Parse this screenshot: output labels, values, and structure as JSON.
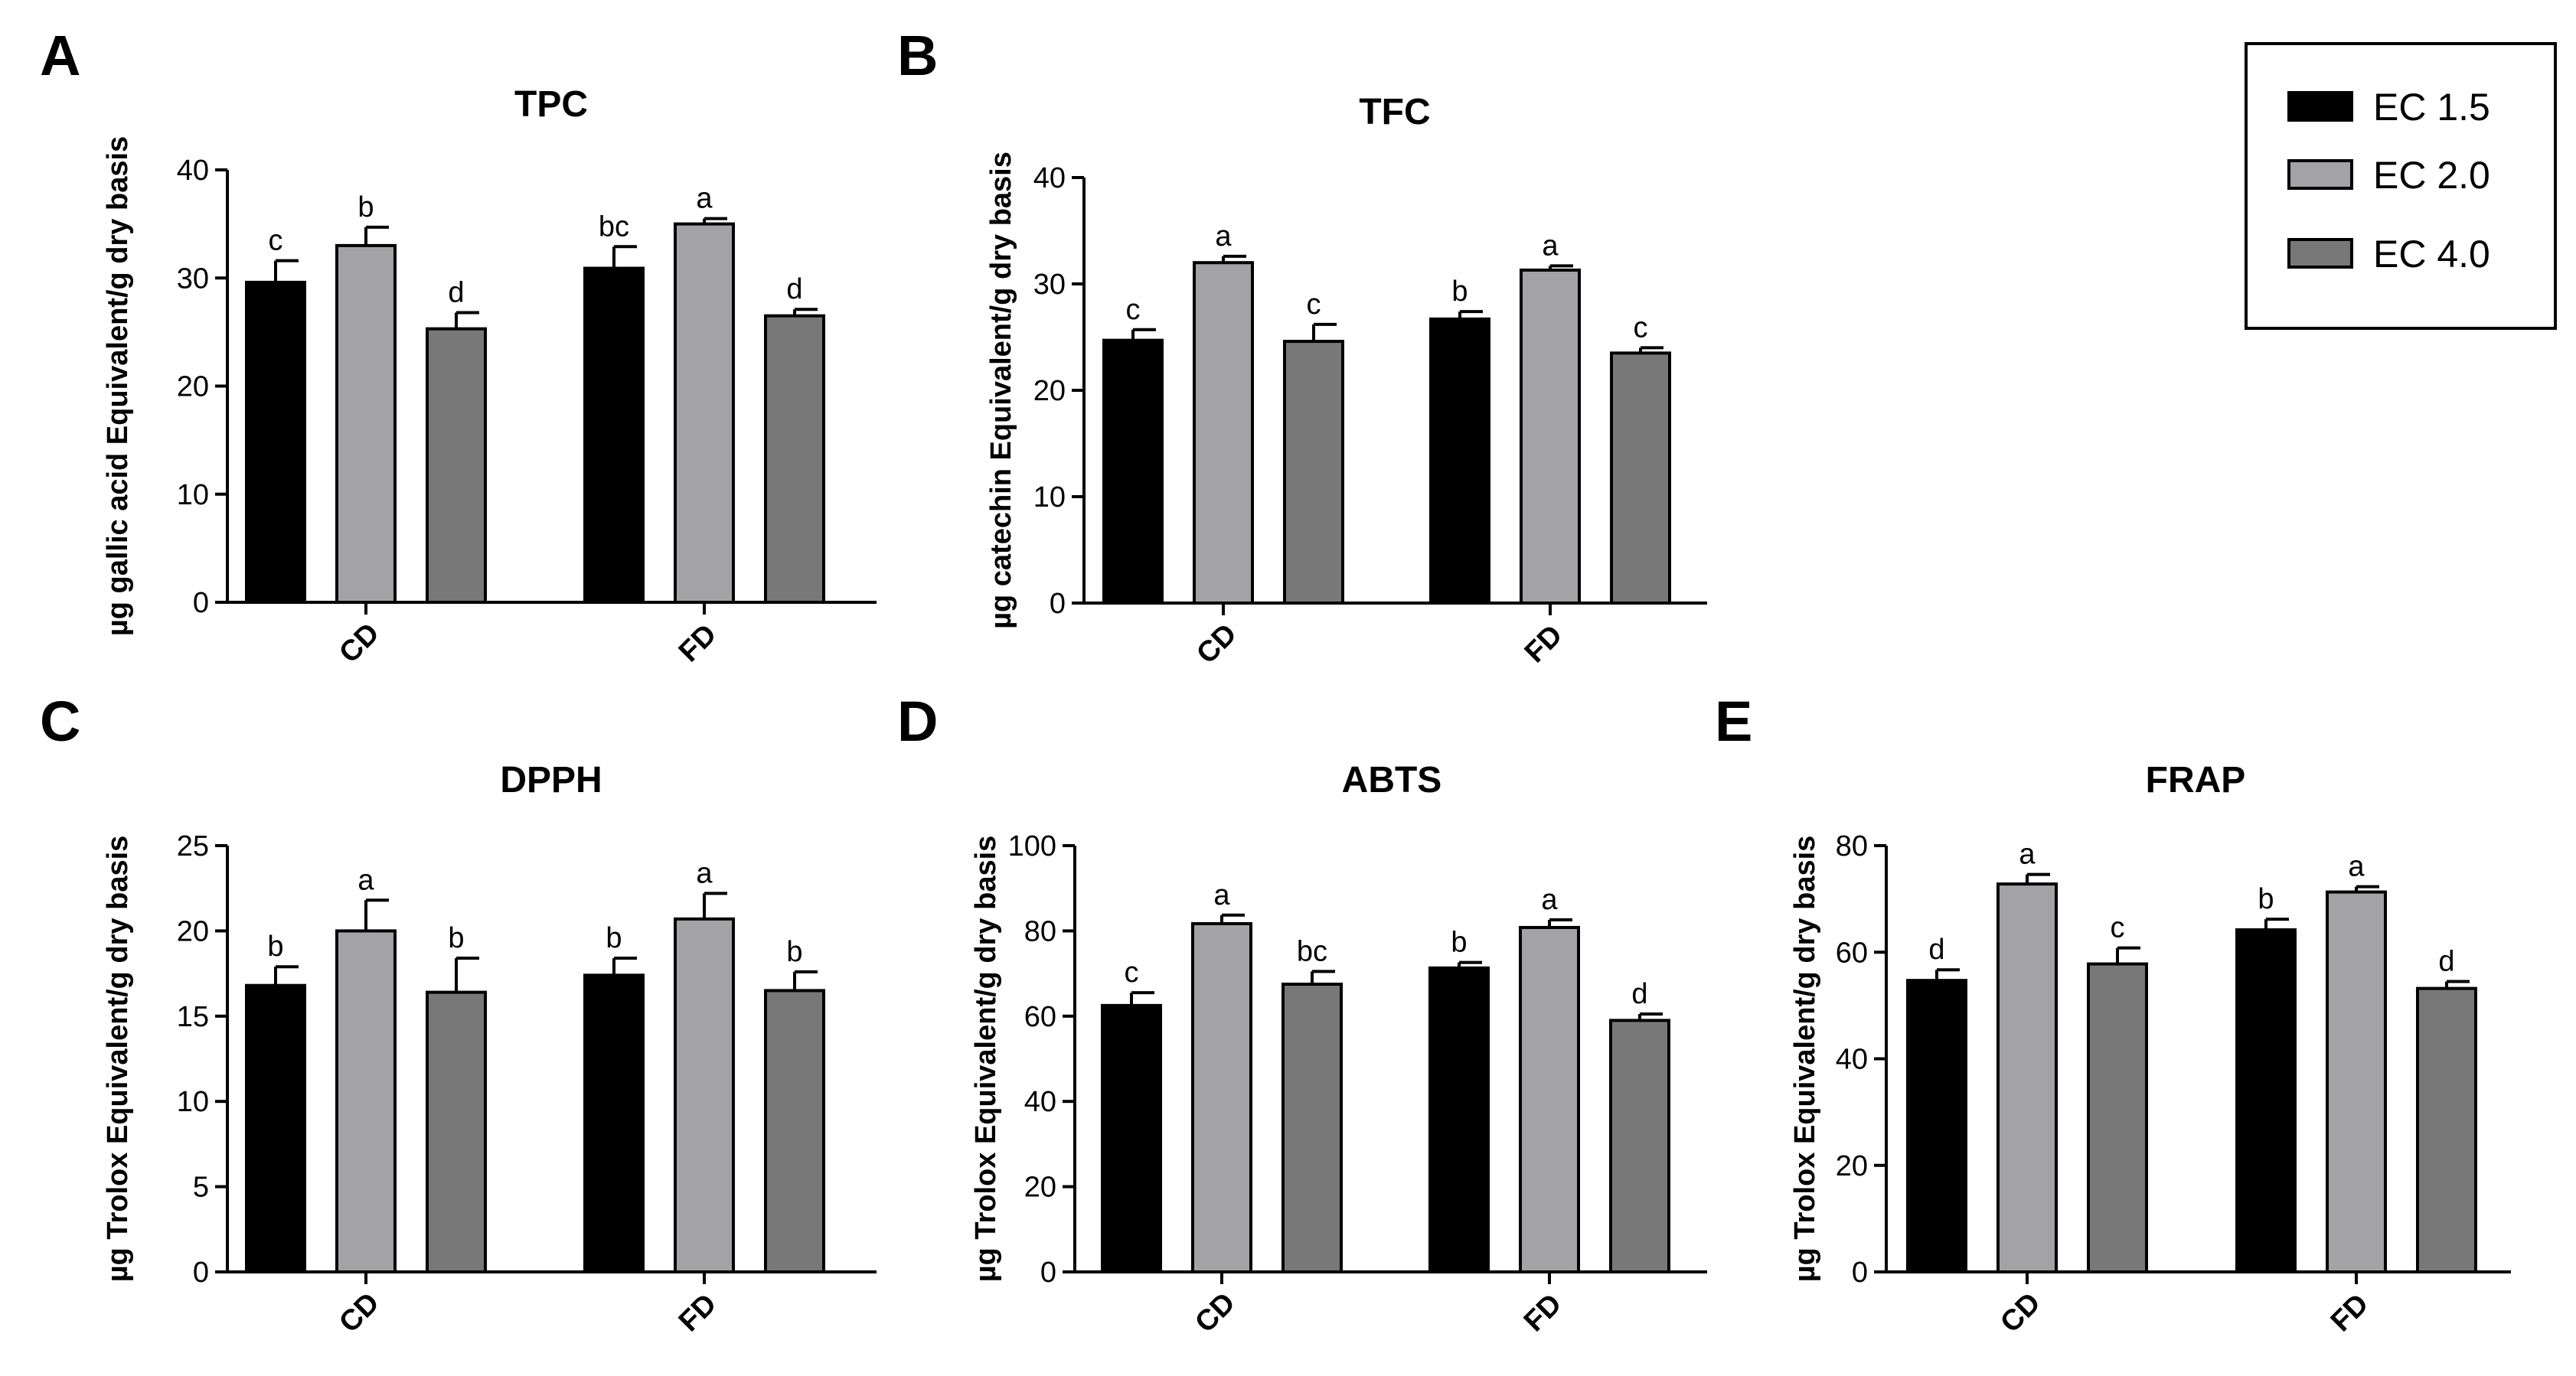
{
  "legend": {
    "entries": [
      {
        "label": "EC 1.5",
        "color": "#000000"
      },
      {
        "label": "EC 2.0",
        "color": "#a3a3a6"
      },
      {
        "label": "EC 4.0",
        "color": "#787878"
      }
    ]
  },
  "chart_data": [
    {
      "id": "A",
      "letter": "A",
      "type": "bar",
      "title": "TPC",
      "ylabel": "µg gallic acid Equivalent/g dry basis",
      "ylim": [
        0,
        40
      ],
      "yticks": [
        0,
        10,
        20,
        30,
        40
      ],
      "categories": [
        "CD",
        "FD"
      ],
      "series": [
        {
          "name": "EC 1.5",
          "values": [
            29.6,
            30.9
          ],
          "errors": [
            2.0,
            2.0
          ],
          "letters": [
            "c",
            "bc"
          ]
        },
        {
          "name": "EC 2.0",
          "values": [
            33.0,
            35.0
          ],
          "errors": [
            1.7,
            0.5
          ],
          "letters": [
            "b",
            "a"
          ]
        },
        {
          "name": "EC 4.0",
          "values": [
            25.3,
            26.5
          ],
          "errors": [
            1.5,
            0.6
          ],
          "letters": [
            "d",
            "d"
          ]
        }
      ]
    },
    {
      "id": "B",
      "letter": "B",
      "type": "bar",
      "title": "TFC",
      "ylabel": "µg catechin Equivalent/g dry basis",
      "ylim": [
        0,
        40
      ],
      "yticks": [
        0,
        10,
        20,
        30,
        40
      ],
      "categories": [
        "CD",
        "FD"
      ],
      "series": [
        {
          "name": "EC 1.5",
          "values": [
            24.7,
            26.7
          ],
          "errors": [
            1.0,
            0.7
          ],
          "letters": [
            "c",
            "b"
          ]
        },
        {
          "name": "EC 2.0",
          "values": [
            32.0,
            31.3
          ],
          "errors": [
            0.6,
            0.4
          ],
          "letters": [
            "a",
            "a"
          ]
        },
        {
          "name": "EC 4.0",
          "values": [
            24.6,
            23.5
          ],
          "errors": [
            1.6,
            0.5
          ],
          "letters": [
            "c",
            "c"
          ]
        }
      ]
    },
    {
      "id": "C",
      "letter": "C",
      "type": "bar",
      "title": "DPPH",
      "ylabel": "µg Trolox Equivalent/g dry basis",
      "ylim": [
        0,
        25
      ],
      "yticks": [
        0,
        5,
        10,
        15,
        20,
        25
      ],
      "categories": [
        "CD",
        "FD"
      ],
      "series": [
        {
          "name": "EC 1.5",
          "values": [
            16.8,
            17.4
          ],
          "errors": [
            1.1,
            1.0
          ],
          "letters": [
            "b",
            "b"
          ]
        },
        {
          "name": "EC 2.0",
          "values": [
            20.0,
            20.7
          ],
          "errors": [
            1.8,
            1.5
          ],
          "letters": [
            "a",
            "a"
          ]
        },
        {
          "name": "EC 4.0",
          "values": [
            16.4,
            16.5
          ],
          "errors": [
            2.0,
            1.1
          ],
          "letters": [
            "b",
            "b"
          ]
        }
      ]
    },
    {
      "id": "D",
      "letter": "D",
      "type": "bar",
      "title": "ABTS",
      "ylabel": "µg Trolox Equivalent/g dry basis",
      "ylim": [
        0,
        100
      ],
      "yticks": [
        0,
        20,
        40,
        60,
        80,
        100
      ],
      "categories": [
        "CD",
        "FD"
      ],
      "series": [
        {
          "name": "EC 1.5",
          "values": [
            62.5,
            71.3
          ],
          "errors": [
            3.0,
            1.3
          ],
          "letters": [
            "c",
            "b"
          ]
        },
        {
          "name": "EC 2.0",
          "values": [
            81.7,
            80.8
          ],
          "errors": [
            2.0,
            1.8
          ],
          "letters": [
            "a",
            "a"
          ]
        },
        {
          "name": "EC 4.0",
          "values": [
            67.5,
            59.0
          ],
          "errors": [
            3.0,
            1.5
          ],
          "letters": [
            "bc",
            "d"
          ]
        }
      ]
    },
    {
      "id": "E",
      "letter": "E",
      "type": "bar",
      "title": "FRAP",
      "ylabel": "µg Trolox Equivalent/g dry basis",
      "ylim": [
        0,
        80
      ],
      "yticks": [
        0,
        20,
        40,
        60,
        80
      ],
      "categories": [
        "CD",
        "FD"
      ],
      "series": [
        {
          "name": "EC 1.5",
          "values": [
            54.7,
            64.2
          ],
          "errors": [
            2.0,
            2.0
          ],
          "letters": [
            "d",
            "b"
          ]
        },
        {
          "name": "EC 2.0",
          "values": [
            72.8,
            71.3
          ],
          "errors": [
            1.8,
            1.0
          ],
          "letters": [
            "a",
            "a"
          ]
        },
        {
          "name": "EC 4.0",
          "values": [
            57.8,
            53.2
          ],
          "errors": [
            3.0,
            1.3
          ],
          "letters": [
            "c",
            "d"
          ]
        }
      ]
    }
  ]
}
